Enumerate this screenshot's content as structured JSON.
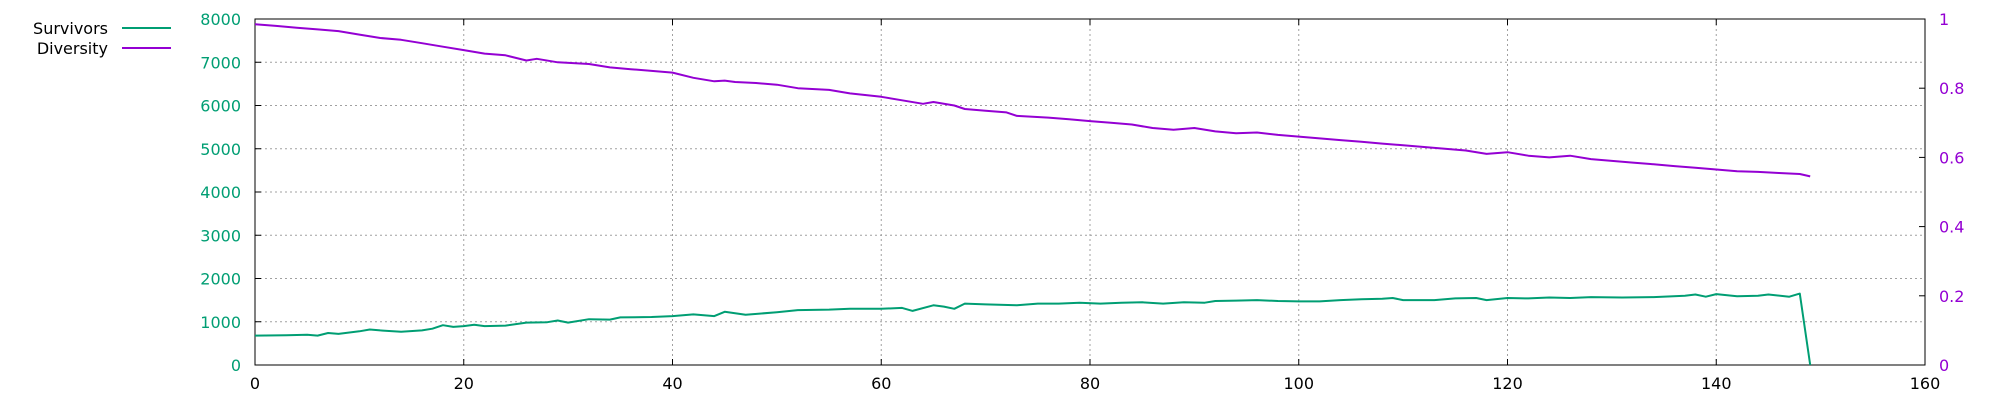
{
  "chart_data": {
    "type": "line",
    "xlim": [
      0,
      160
    ],
    "x_ticks": [
      0,
      20,
      40,
      60,
      80,
      100,
      120,
      140,
      160
    ],
    "y_left": {
      "lim": [
        0,
        8000
      ],
      "ticks": [
        0,
        1000,
        2000,
        3000,
        4000,
        5000,
        6000,
        7000,
        8000
      ],
      "color": "#009e73"
    },
    "y_right": {
      "lim": [
        0,
        1
      ],
      "ticks": [
        "0",
        "0.2",
        "0.4",
        "0.6",
        "0.8",
        "1"
      ],
      "tick_values": [
        0,
        0.2,
        0.4,
        0.6,
        0.8,
        1
      ],
      "color": "#9400d3"
    },
    "grid": true,
    "legend_position": "top-left-outside",
    "series": [
      {
        "name": "Survivors",
        "axis": "left",
        "color": "#009e73",
        "points": [
          [
            0,
            680
          ],
          [
            3,
            690
          ],
          [
            5,
            700
          ],
          [
            6,
            680
          ],
          [
            7,
            740
          ],
          [
            8,
            720
          ],
          [
            10,
            780
          ],
          [
            11,
            820
          ],
          [
            12,
            800
          ],
          [
            14,
            770
          ],
          [
            16,
            800
          ],
          [
            17,
            840
          ],
          [
            18,
            920
          ],
          [
            19,
            880
          ],
          [
            20,
            900
          ],
          [
            21,
            930
          ],
          [
            22,
            900
          ],
          [
            24,
            910
          ],
          [
            26,
            980
          ],
          [
            28,
            990
          ],
          [
            29,
            1030
          ],
          [
            30,
            980
          ],
          [
            32,
            1060
          ],
          [
            34,
            1050
          ],
          [
            35,
            1100
          ],
          [
            38,
            1110
          ],
          [
            40,
            1130
          ],
          [
            42,
            1170
          ],
          [
            44,
            1130
          ],
          [
            45,
            1230
          ],
          [
            47,
            1160
          ],
          [
            50,
            1220
          ],
          [
            52,
            1270
          ],
          [
            55,
            1280
          ],
          [
            57,
            1300
          ],
          [
            60,
            1300
          ],
          [
            62,
            1320
          ],
          [
            63,
            1250
          ],
          [
            65,
            1380
          ],
          [
            66,
            1350
          ],
          [
            67,
            1300
          ],
          [
            68,
            1420
          ],
          [
            70,
            1400
          ],
          [
            73,
            1380
          ],
          [
            75,
            1420
          ],
          [
            77,
            1420
          ],
          [
            79,
            1440
          ],
          [
            81,
            1420
          ],
          [
            83,
            1440
          ],
          [
            85,
            1450
          ],
          [
            87,
            1420
          ],
          [
            89,
            1450
          ],
          [
            91,
            1440
          ],
          [
            92,
            1480
          ],
          [
            94,
            1490
          ],
          [
            96,
            1500
          ],
          [
            98,
            1480
          ],
          [
            100,
            1470
          ],
          [
            102,
            1470
          ],
          [
            104,
            1500
          ],
          [
            106,
            1520
          ],
          [
            108,
            1530
          ],
          [
            109,
            1550
          ],
          [
            110,
            1500
          ],
          [
            113,
            1500
          ],
          [
            115,
            1540
          ],
          [
            117,
            1550
          ],
          [
            118,
            1500
          ],
          [
            120,
            1550
          ],
          [
            122,
            1540
          ],
          [
            124,
            1560
          ],
          [
            126,
            1550
          ],
          [
            128,
            1570
          ],
          [
            131,
            1560
          ],
          [
            134,
            1570
          ],
          [
            137,
            1600
          ],
          [
            138,
            1630
          ],
          [
            139,
            1580
          ],
          [
            140,
            1640
          ],
          [
            142,
            1590
          ],
          [
            144,
            1600
          ],
          [
            145,
            1630
          ],
          [
            147,
            1580
          ],
          [
            148,
            1650
          ],
          [
            149,
            0
          ]
        ]
      },
      {
        "name": "Diversity",
        "axis": "right",
        "color": "#9400d3",
        "points": [
          [
            0,
            0.985
          ],
          [
            2,
            0.98
          ],
          [
            4,
            0.975
          ],
          [
            6,
            0.97
          ],
          [
            8,
            0.965
          ],
          [
            10,
            0.955
          ],
          [
            12,
            0.945
          ],
          [
            14,
            0.94
          ],
          [
            16,
            0.93
          ],
          [
            18,
            0.92
          ],
          [
            20,
            0.91
          ],
          [
            22,
            0.9
          ],
          [
            24,
            0.895
          ],
          [
            26,
            0.88
          ],
          [
            27,
            0.885
          ],
          [
            29,
            0.875
          ],
          [
            32,
            0.87
          ],
          [
            34,
            0.86
          ],
          [
            36,
            0.855
          ],
          [
            38,
            0.85
          ],
          [
            40,
            0.845
          ],
          [
            42,
            0.83
          ],
          [
            44,
            0.82
          ],
          [
            45,
            0.822
          ],
          [
            46,
            0.818
          ],
          [
            48,
            0.815
          ],
          [
            50,
            0.81
          ],
          [
            52,
            0.8
          ],
          [
            55,
            0.795
          ],
          [
            57,
            0.785
          ],
          [
            60,
            0.775
          ],
          [
            62,
            0.765
          ],
          [
            64,
            0.755
          ],
          [
            65,
            0.76
          ],
          [
            67,
            0.75
          ],
          [
            68,
            0.74
          ],
          [
            70,
            0.735
          ],
          [
            72,
            0.73
          ],
          [
            73,
            0.72
          ],
          [
            76,
            0.715
          ],
          [
            78,
            0.71
          ],
          [
            80,
            0.705
          ],
          [
            82,
            0.7
          ],
          [
            84,
            0.695
          ],
          [
            86,
            0.685
          ],
          [
            88,
            0.68
          ],
          [
            90,
            0.685
          ],
          [
            92,
            0.675
          ],
          [
            94,
            0.67
          ],
          [
            96,
            0.672
          ],
          [
            98,
            0.665
          ],
          [
            100,
            0.66
          ],
          [
            102,
            0.655
          ],
          [
            104,
            0.65
          ],
          [
            106,
            0.645
          ],
          [
            108,
            0.64
          ],
          [
            110,
            0.635
          ],
          [
            112,
            0.63
          ],
          [
            114,
            0.625
          ],
          [
            116,
            0.62
          ],
          [
            118,
            0.61
          ],
          [
            120,
            0.615
          ],
          [
            122,
            0.605
          ],
          [
            124,
            0.6
          ],
          [
            126,
            0.605
          ],
          [
            128,
            0.595
          ],
          [
            130,
            0.59
          ],
          [
            132,
            0.585
          ],
          [
            134,
            0.58
          ],
          [
            136,
            0.575
          ],
          [
            138,
            0.57
          ],
          [
            140,
            0.565
          ],
          [
            142,
            0.56
          ],
          [
            144,
            0.558
          ],
          [
            146,
            0.555
          ],
          [
            148,
            0.552
          ],
          [
            149,
            0.545
          ]
        ]
      }
    ]
  }
}
